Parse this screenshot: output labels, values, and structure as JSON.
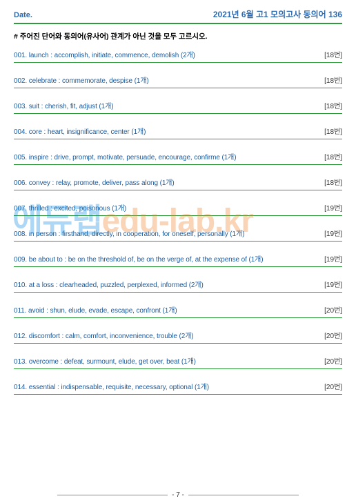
{
  "header": {
    "date_label": "Date.",
    "title": "2021년 6월 고1 모의고사  동의어 136"
  },
  "instruction": "# 주어진 단어와 동의어(유사어) 관계가 아닌 것을 모두 고르시오.",
  "items": [
    {
      "n": "001.",
      "text": "launch : accomplish, initiate, commence, demolish (2개)",
      "ref": "[18번]"
    },
    {
      "n": "002.",
      "text": "celebrate : commemorate, despise (1개)",
      "ref": "[18번]"
    },
    {
      "n": "003.",
      "text": "suit : cherish, fit, adjust (1개)",
      "ref": "[18번]"
    },
    {
      "n": "004.",
      "text": "core : heart, insignificance, center (1개)",
      "ref": "[18번]"
    },
    {
      "n": "005.",
      "text": "inspire : drive, prompt, motivate, persuade, encourage, confirme (1개)",
      "ref": "[18번]"
    },
    {
      "n": "006.",
      "text": "convey : relay, promote, deliver, pass along (1개)",
      "ref": "[18번]"
    },
    {
      "n": "007.",
      "text": "thrilled : excited, poisonous (1개)",
      "ref": "[19번]"
    },
    {
      "n": "008.",
      "text": "in person : firsthand, directly, in cooperation, for oneself, personally (1개)",
      "ref": "[19번]"
    },
    {
      "n": "009.",
      "text": "be about to : be on the threshold of, be on the verge of, at the expense of (1개)",
      "ref": "[19번]"
    },
    {
      "n": "010.",
      "text": "at a loss : clearheaded, puzzled, perplexed, informed (2개)",
      "ref": "[19번]"
    },
    {
      "n": "011.",
      "text": "avoid : shun, elude, evade, escape, confront (1개)",
      "ref": "[20번]"
    },
    {
      "n": "012.",
      "text": "discomfort : calm, comfort, inconvenience, trouble (2개)",
      "ref": "[20번]"
    },
    {
      "n": "013.",
      "text": "overcome : defeat, surmount, elude, get over, beat (1개)",
      "ref": "[20번]"
    },
    {
      "n": "014.",
      "text": "essential : indispensable, requisite, necessary, optional (1개)",
      "ref": "[20번]"
    }
  ],
  "watermark": {
    "kr": "에듀랩",
    "en": "edu-lab.kr"
  },
  "footer": {
    "page": "- 7 -"
  }
}
